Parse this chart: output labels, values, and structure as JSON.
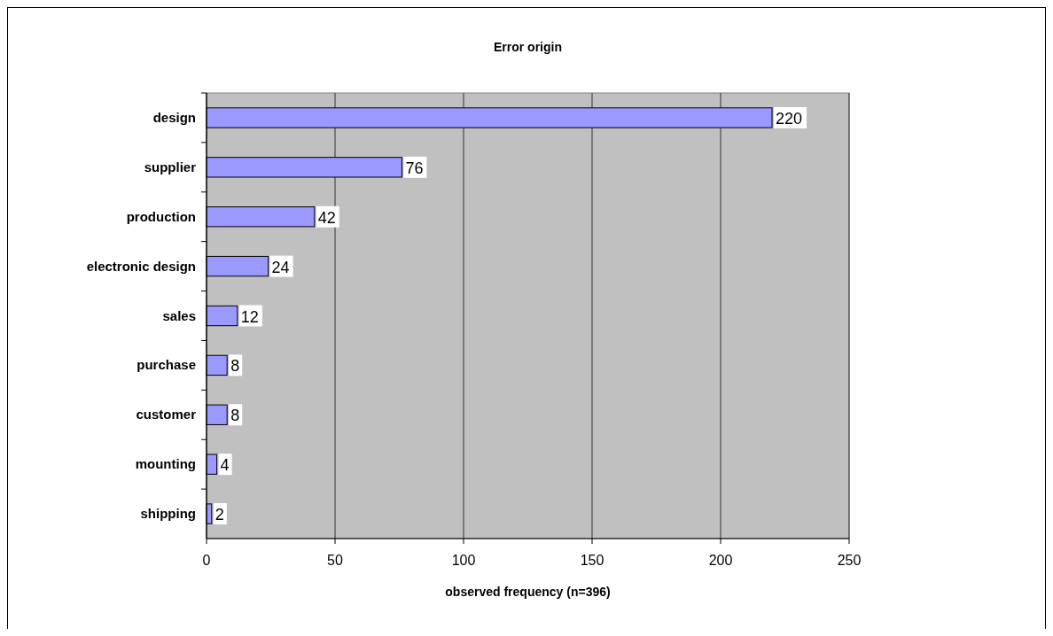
{
  "chart_data": {
    "type": "bar",
    "orientation": "horizontal",
    "title": "Error origin",
    "xlabel": "observed frequency (n=396)",
    "categories": [
      "design",
      "supplier",
      "production",
      "electronic design",
      "sales",
      "purchase",
      "customer",
      "mounting",
      "shipping"
    ],
    "values": [
      220,
      76,
      42,
      24,
      12,
      8,
      8,
      4,
      2
    ],
    "color": "#9999ff",
    "xlim": [
      0,
      250
    ],
    "xticks": [
      0,
      50,
      100,
      150,
      200,
      250
    ],
    "grid": "x",
    "data_labels": true
  }
}
